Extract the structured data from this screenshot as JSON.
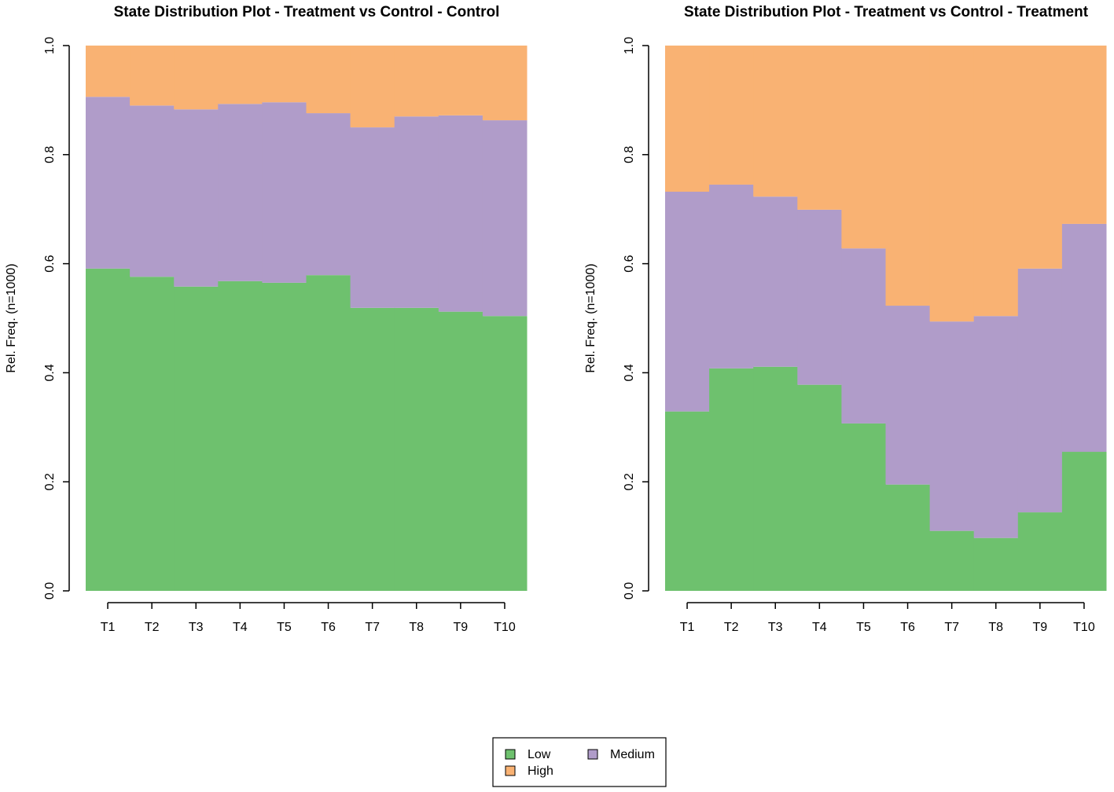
{
  "chart_data": [
    {
      "type": "bar",
      "stacked": true,
      "title": "State Distribution Plot - Treatment vs Control - Control",
      "y_label": "Rel. Freq. (n=1000)",
      "categories": [
        "T1",
        "T2",
        "T3",
        "T4",
        "T5",
        "T6",
        "T7",
        "T8",
        "T9",
        "T10"
      ],
      "series": [
        {
          "name": "Low",
          "color": "#6ec16e",
          "values": [
            0.591,
            0.576,
            0.558,
            0.568,
            0.565,
            0.579,
            0.519,
            0.519,
            0.512,
            0.504
          ]
        },
        {
          "name": "Medium",
          "color": "#b09cc9",
          "values": [
            0.315,
            0.314,
            0.325,
            0.325,
            0.331,
            0.297,
            0.331,
            0.351,
            0.36,
            0.359
          ]
        },
        {
          "name": "High",
          "color": "#f9b273",
          "values": [
            0.094,
            0.11,
            0.117,
            0.107,
            0.104,
            0.124,
            0.15,
            0.13,
            0.128,
            0.137
          ]
        }
      ],
      "ylim": [
        0,
        1
      ],
      "yticks": [
        {
          "value": 0,
          "label": "0.0"
        },
        0.2,
        0.4,
        0.6,
        0.8,
        {
          "value": 1,
          "label": "1.0"
        }
      ]
    },
    {
      "type": "bar",
      "stacked": true,
      "title": "State Distribution Plot - Treatment vs Control - Treatment",
      "y_label": "Rel. Freq. (n=1000)",
      "categories": [
        "T1",
        "T2",
        "T3",
        "T4",
        "T5",
        "T6",
        "T7",
        "T8",
        "T9",
        "T10"
      ],
      "series": [
        {
          "name": "Low",
          "color": "#6ec16e",
          "values": [
            0.329,
            0.408,
            0.411,
            0.378,
            0.307,
            0.195,
            0.11,
            0.097,
            0.144,
            0.255
          ]
        },
        {
          "name": "Medium",
          "color": "#b09cc9",
          "values": [
            0.403,
            0.337,
            0.312,
            0.321,
            0.321,
            0.328,
            0.384,
            0.407,
            0.447,
            0.418
          ]
        },
        {
          "name": "High",
          "color": "#f9b273",
          "values": [
            0.268,
            0.255,
            0.277,
            0.301,
            0.372,
            0.477,
            0.506,
            0.496,
            0.409,
            0.327
          ]
        }
      ],
      "ylim": [
        0,
        1
      ],
      "yticks": [
        {
          "value": 0,
          "label": "0.0"
        },
        0.2,
        0.4,
        0.6,
        0.8,
        {
          "value": 1,
          "label": "1.0"
        }
      ]
    }
  ]
}
